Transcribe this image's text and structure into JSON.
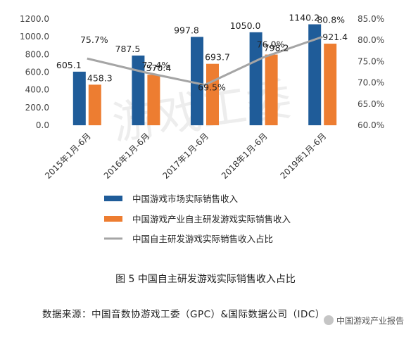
{
  "chart_data": {
    "type": "bar",
    "categories": [
      "2015年1月-6月",
      "2016年1月-6月",
      "2017年1月-6月",
      "2018年1月-6月",
      "2019年1月-6月"
    ],
    "series": [
      {
        "name": "中国游戏市场实际销售收入",
        "type": "bar",
        "axis": "left",
        "color": "#1F5C99",
        "values": [
          605.1,
          787.5,
          997.8,
          1050.0,
          1140.2
        ],
        "labels": [
          "605.1",
          "787.5",
          "997.8",
          "1050.0",
          "1140.2"
        ]
      },
      {
        "name": "中国游戏产业自主研发游戏实际销售收入",
        "type": "bar",
        "axis": "left",
        "color": "#ED7D31",
        "values": [
          458.3,
          570.4,
          693.7,
          798.2,
          921.4
        ],
        "labels": [
          "458.3",
          "570.4",
          "693.7",
          "798.2",
          "921.4"
        ]
      },
      {
        "name": "中国自主研发游戏实际销售收入占比",
        "type": "line",
        "axis": "right",
        "color": "#A5A5A5",
        "values": [
          75.7,
          72.4,
          69.5,
          76.0,
          80.8
        ],
        "labels": [
          "75.7%",
          "72.4%",
          "69.5%",
          "76.0%",
          "80.8%"
        ]
      }
    ],
    "y_left": {
      "min": 0,
      "max": 1200,
      "ticks": [
        "0.0",
        "200.0",
        "400.0",
        "600.0",
        "800.0",
        "1000.0",
        "1200.0"
      ]
    },
    "y_right": {
      "min": 60,
      "max": 85,
      "ticks": [
        "60.0%",
        "65.0%",
        "70.0%",
        "75.0%",
        "80.0%",
        "85.0%"
      ]
    },
    "grid": false,
    "legend_placement": "bottom-left"
  },
  "watermark": "游戏工委",
  "caption": "图 5  中国自主研发游戏实际销售收入占比",
  "source": "数据来源：中国音数协游戏工委（GPC）&国际数据公司（IDC）",
  "brand_watermark": "中国游戏产业报告"
}
